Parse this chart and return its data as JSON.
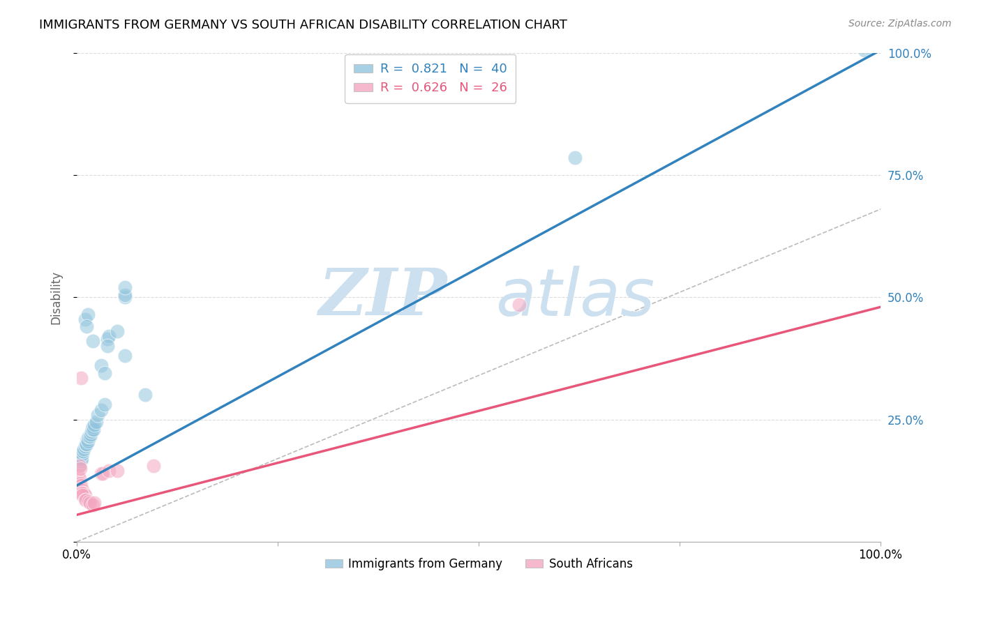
{
  "title": "IMMIGRANTS FROM GERMANY VS SOUTH AFRICAN DISABILITY CORRELATION CHART",
  "source": "Source: ZipAtlas.com",
  "ylabel": "Disability",
  "legend_blue_R": "R =  0.821",
  "legend_blue_N": "N =  40",
  "legend_pink_R": "R =  0.626",
  "legend_pink_N": "N =  26",
  "legend_label_blue": "Immigrants from Germany",
  "legend_label_pink": "South Africans",
  "blue_color": "#92c5de",
  "pink_color": "#f4a6c0",
  "blue_line_color": "#3182bd",
  "pink_line_color": "#e8567a",
  "blue_scatter": [
    [
      0.003,
      0.155
    ],
    [
      0.005,
      0.165
    ],
    [
      0.006,
      0.17
    ],
    [
      0.007,
      0.18
    ],
    [
      0.008,
      0.185
    ],
    [
      0.009,
      0.19
    ],
    [
      0.01,
      0.195
    ],
    [
      0.011,
      0.2
    ],
    [
      0.012,
      0.2
    ],
    [
      0.013,
      0.21
    ],
    [
      0.014,
      0.205
    ],
    [
      0.015,
      0.215
    ],
    [
      0.016,
      0.215
    ],
    [
      0.017,
      0.22
    ],
    [
      0.018,
      0.225
    ],
    [
      0.019,
      0.23
    ],
    [
      0.02,
      0.235
    ],
    [
      0.021,
      0.23
    ],
    [
      0.022,
      0.24
    ],
    [
      0.024,
      0.245
    ],
    [
      0.026,
      0.26
    ],
    [
      0.03,
      0.27
    ],
    [
      0.035,
      0.28
    ],
    [
      0.01,
      0.455
    ],
    [
      0.014,
      0.465
    ],
    [
      0.012,
      0.44
    ],
    [
      0.02,
      0.41
    ],
    [
      0.03,
      0.36
    ],
    [
      0.035,
      0.345
    ],
    [
      0.038,
      0.415
    ],
    [
      0.04,
      0.42
    ],
    [
      0.05,
      0.43
    ],
    [
      0.06,
      0.5
    ],
    [
      0.06,
      0.505
    ],
    [
      0.038,
      0.4
    ],
    [
      0.06,
      0.38
    ],
    [
      0.085,
      0.3
    ],
    [
      0.06,
      0.52
    ],
    [
      0.62,
      0.785
    ],
    [
      0.98,
      1.005
    ]
  ],
  "pink_scatter": [
    [
      0.002,
      0.135
    ],
    [
      0.003,
      0.13
    ],
    [
      0.004,
      0.12
    ],
    [
      0.005,
      0.115
    ],
    [
      0.006,
      0.11
    ],
    [
      0.007,
      0.105
    ],
    [
      0.008,
      0.1
    ],
    [
      0.009,
      0.1
    ],
    [
      0.01,
      0.095
    ],
    [
      0.003,
      0.155
    ],
    [
      0.004,
      0.15
    ],
    [
      0.006,
      0.1
    ],
    [
      0.007,
      0.095
    ],
    [
      0.01,
      0.085
    ],
    [
      0.011,
      0.085
    ],
    [
      0.015,
      0.082
    ],
    [
      0.016,
      0.08
    ],
    [
      0.02,
      0.075
    ],
    [
      0.022,
      0.08
    ],
    [
      0.03,
      0.14
    ],
    [
      0.032,
      0.14
    ],
    [
      0.04,
      0.145
    ],
    [
      0.05,
      0.145
    ],
    [
      0.005,
      0.335
    ],
    [
      0.55,
      0.485
    ],
    [
      0.095,
      0.155
    ]
  ],
  "xlim": [
    0.0,
    1.0
  ],
  "ylim": [
    0.0,
    1.0
  ],
  "yticks": [
    0.0,
    0.25,
    0.5,
    0.75,
    1.0
  ],
  "ytick_labels_right": [
    "",
    "25.0%",
    "50.0%",
    "75.0%",
    "100.0%"
  ],
  "xticks": [
    0.0,
    0.25,
    0.5,
    0.75,
    1.0
  ],
  "xtick_labels": [
    "0.0%",
    "",
    "",
    "",
    "100.0%"
  ],
  "grid_color": "#cccccc",
  "background_color": "#ffffff",
  "watermark_zip": "ZIP",
  "watermark_atlas": "atlas",
  "watermark_color": "#cce0f0",
  "blue_line_x": [
    0.0,
    1.0
  ],
  "blue_line_y": [
    0.115,
    1.005
  ],
  "pink_line_x": [
    0.0,
    1.0
  ],
  "pink_line_y": [
    0.055,
    0.48
  ],
  "dash_line_x": [
    0.0,
    1.0
  ],
  "dash_line_y": [
    0.0,
    0.68
  ]
}
